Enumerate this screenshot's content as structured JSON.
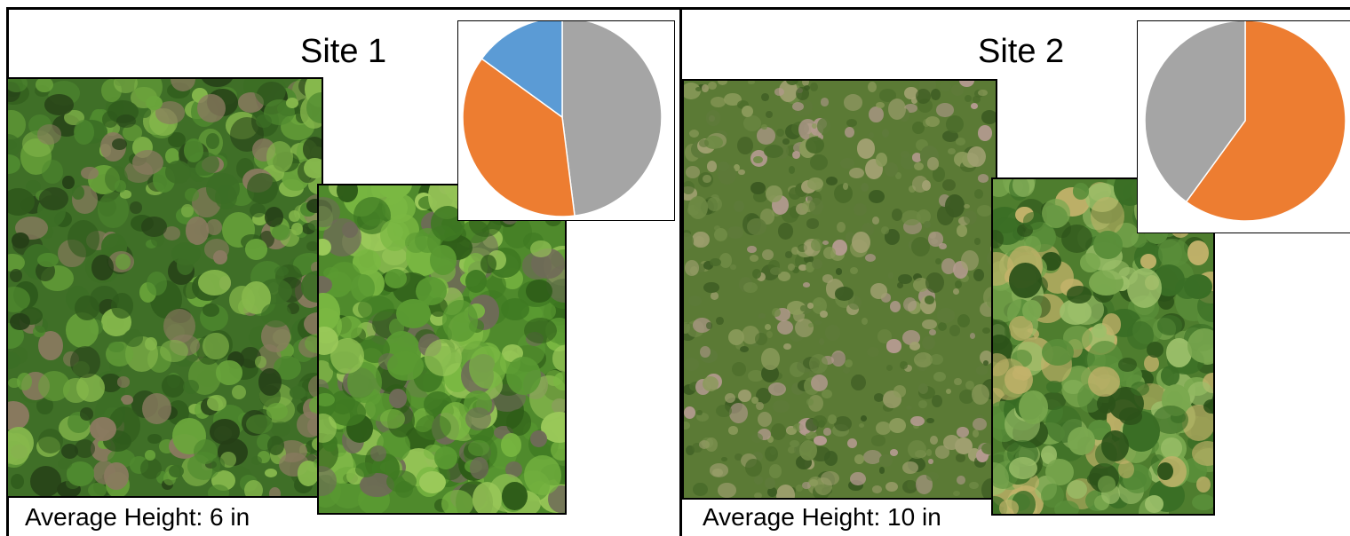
{
  "sites": [
    {
      "title": "Site 1",
      "height_label": "Average Height: 6 in",
      "chart_data": {
        "type": "pie",
        "title": "",
        "slices": [
          {
            "color": "#a5a5a5",
            "value": 0.48
          },
          {
            "color": "#ed7d31",
            "value": 0.37
          },
          {
            "color": "#5b9bd5",
            "value": 0.15
          }
        ]
      },
      "photos": [
        {
          "name": "site-1-overview-photo",
          "content": "dense green weeds and clover"
        },
        {
          "name": "site-1-closeup-photo",
          "content": "clover leaves close-up"
        }
      ]
    },
    {
      "title": "Site 2",
      "height_label": "Average Height: 10 in",
      "chart_data": {
        "type": "pie",
        "title": "",
        "slices": [
          {
            "color": "#ed7d31",
            "value": 0.6
          },
          {
            "color": "#a5a5a5",
            "value": 0.4
          }
        ]
      },
      "photos": [
        {
          "name": "site-2-overview-photo",
          "content": "mixed grasses and clover"
        },
        {
          "name": "site-2-closeup-photo",
          "content": "clover leaves close-up"
        }
      ]
    }
  ]
}
